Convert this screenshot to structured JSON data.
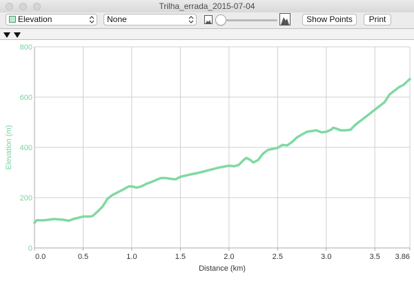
{
  "window": {
    "title": "Trilha_errada_2015-07-04"
  },
  "toolbar": {
    "primary_select": "Elevation",
    "secondary_select": "None",
    "show_points_label": "Show Points",
    "print_label": "Print",
    "slider_value": 0
  },
  "colors": {
    "accent": "#7fd9a3",
    "label": "#77d4a0",
    "grid": "#cfcfcf",
    "axis": "#a9a9a9"
  },
  "icons": [
    "terrain-low-icon",
    "terrain-high-icon",
    "marker-icon",
    "chevron-updown-icon"
  ],
  "chart_data": {
    "type": "line",
    "title": "",
    "xlabel": "Distance (km)",
    "ylabel": "Elevation (m)",
    "xlim": [
      0,
      3.86
    ],
    "ylim": [
      0,
      800
    ],
    "xticks": [
      "0.0",
      "0.5",
      "1.0",
      "1.5",
      "2.0",
      "2.5",
      "3.0",
      "3.5",
      "3.86"
    ],
    "xtick_values": [
      0,
      0.5,
      1.0,
      1.5,
      2.0,
      2.5,
      3.0,
      3.5,
      3.86
    ],
    "yticks": [
      "0",
      "200",
      "400",
      "600",
      "800"
    ],
    "ytick_values": [
      0,
      200,
      400,
      600,
      800
    ],
    "grid": true,
    "series": [
      {
        "x": [
          0,
          0.02,
          0.1,
          0.2,
          0.3,
          0.35,
          0.4,
          0.45,
          0.5,
          0.58,
          0.6,
          0.65,
          0.7,
          0.75,
          0.8,
          0.9,
          0.97,
          1.0,
          1.05,
          1.1,
          1.15,
          1.2,
          1.25,
          1.3,
          1.35,
          1.4,
          1.45,
          1.5,
          1.6,
          1.7,
          1.8,
          1.9,
          2.0,
          2.05,
          2.1,
          2.15,
          2.18,
          2.22,
          2.25,
          2.3,
          2.35,
          2.4,
          2.5,
          2.55,
          2.6,
          2.65,
          2.7,
          2.8,
          2.9,
          2.95,
          3.0,
          3.05,
          3.07,
          3.1,
          3.15,
          3.2,
          3.25,
          3.3,
          3.4,
          3.5,
          3.6,
          3.65,
          3.7,
          3.75,
          3.8,
          3.84,
          3.86
        ],
        "values": [
          100,
          110,
          110,
          115,
          112,
          108,
          115,
          120,
          125,
          125,
          128,
          145,
          165,
          195,
          210,
          230,
          245,
          245,
          240,
          245,
          255,
          262,
          270,
          278,
          278,
          275,
          273,
          283,
          292,
          300,
          310,
          320,
          327,
          325,
          330,
          350,
          358,
          350,
          340,
          350,
          375,
          390,
          398,
          410,
          408,
          422,
          440,
          462,
          468,
          460,
          462,
          470,
          478,
          475,
          468,
          468,
          470,
          490,
          520,
          550,
          580,
          610,
          625,
          640,
          650,
          665,
          672
        ]
      }
    ]
  }
}
